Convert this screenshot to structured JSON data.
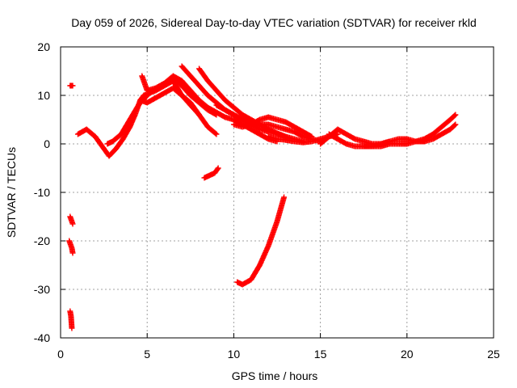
{
  "chart_data": {
    "type": "scatter",
    "title": "Day 059 of 2026, Sidereal Day-to-day VTEC variation (SDTVAR) for receiver rkld",
    "xlabel": "GPS time / hours",
    "ylabel": "SDTVAR / TECUs",
    "xlim": [
      0,
      25
    ],
    "ylim": [
      -40,
      20
    ],
    "xticks": [
      0,
      5,
      10,
      15,
      20,
      25
    ],
    "yticks": [
      -40,
      -30,
      -20,
      -10,
      0,
      10,
      20
    ],
    "grid": true,
    "marker": "+",
    "color": "#ff0000",
    "series": [
      {
        "name": "s1",
        "x": [
          1.0,
          1.5,
          2.0,
          2.5,
          2.8,
          3.2,
          3.6,
          4.0,
          4.3,
          4.6,
          4.8,
          5.5,
          6.0,
          6.5,
          7.0,
          7.5,
          8.0
        ],
        "y": [
          2,
          3,
          1.5,
          -1,
          -2.5,
          -1,
          1,
          3.5,
          6,
          9,
          10,
          11,
          12,
          13,
          10,
          8,
          6
        ]
      },
      {
        "name": "s2",
        "x": [
          2.7,
          3.0,
          3.5,
          4.0,
          4.5,
          5.0,
          5.5,
          6.0,
          6.5,
          7.0,
          7.5,
          8.0,
          8.5,
          9.0
        ],
        "y": [
          0,
          0.5,
          2,
          5,
          8,
          10,
          11.5,
          12.5,
          13.5,
          12,
          10,
          8.5,
          7,
          6
        ]
      },
      {
        "name": "s3",
        "x": [
          4.6,
          5.0,
          5.5,
          6.0,
          6.5,
          7.0,
          7.5,
          8.0,
          8.5,
          9.0
        ],
        "y": [
          9,
          8.5,
          9.5,
          10.5,
          11.5,
          10,
          8.5,
          6,
          3.5,
          2
        ]
      },
      {
        "name": "s4",
        "x": [
          4.7,
          5.0,
          5.5,
          6.0,
          6.5,
          7.0,
          7.5,
          8.0,
          8.5,
          9.0,
          9.5,
          10.0,
          10.5,
          11.0,
          11.5,
          12.0,
          12.5
        ],
        "y": [
          14,
          11,
          11.5,
          12.5,
          14,
          13,
          11,
          9,
          7.5,
          6.5,
          5.5,
          5,
          4,
          3,
          2,
          1,
          0.5
        ]
      },
      {
        "name": "s5",
        "x": [
          7.0,
          7.5,
          8.0,
          8.5,
          9.0,
          9.5,
          10.0,
          10.5,
          11.0,
          11.5,
          12.0,
          12.5,
          13.0,
          13.5,
          14.0
        ],
        "y": [
          16,
          14,
          12,
          10,
          8.5,
          7,
          6,
          5,
          4,
          3,
          2.5,
          2,
          1.5,
          1,
          0.5
        ]
      },
      {
        "name": "s6",
        "x": [
          8.0,
          8.5,
          9.0,
          9.5,
          10.0,
          10.5,
          11.0,
          11.5,
          12.0,
          12.5,
          13.0
        ],
        "y": [
          15.5,
          13,
          11,
          9,
          7.5,
          6,
          5,
          4,
          3,
          2.2,
          1.5
        ]
      },
      {
        "name": "s7",
        "x": [
          9.0,
          9.5,
          10.0,
          10.5,
          11.0,
          11.5,
          12.0,
          12.5,
          13.0,
          13.5,
          14.0,
          14.5,
          15.0
        ],
        "y": [
          8,
          7,
          6,
          5,
          4.5,
          4,
          4,
          3.5,
          3,
          2.5,
          1.5,
          1,
          0.5
        ]
      },
      {
        "name": "s8",
        "x": [
          10.0,
          10.5,
          11.0,
          11.5,
          12.0,
          12.5,
          13.0,
          13.5,
          14.0,
          14.5
        ],
        "y": [
          4,
          3.5,
          4,
          5,
          5.5,
          5,
          4.5,
          3.5,
          2.5,
          1.5
        ]
      },
      {
        "name": "s9",
        "x": [
          12.0,
          12.5,
          13.0,
          13.5,
          14.0,
          14.5,
          15.0,
          15.5,
          16.0
        ],
        "y": [
          1.5,
          1,
          0.8,
          0.5,
          0.3,
          0.5,
          1,
          1.5,
          2
        ]
      },
      {
        "name": "s10",
        "x": [
          15.0,
          15.5,
          16.0,
          16.5,
          17.0,
          17.5,
          18.0,
          18.5,
          19.0,
          19.5,
          20.0,
          20.5,
          21.0
        ],
        "y": [
          0,
          1.5,
          3,
          2,
          1,
          0.5,
          0,
          0,
          0.5,
          1,
          1,
          0.5,
          0.5
        ]
      },
      {
        "name": "s11",
        "x": [
          15.5,
          16.0,
          16.5,
          17.0,
          17.5,
          18.0,
          18.5,
          19.0
        ],
        "y": [
          2,
          1,
          0,
          -0.5,
          -0.5,
          -0.5,
          0,
          0.5
        ]
      },
      {
        "name": "s12",
        "x": [
          17.5,
          18.0,
          18.5,
          19.0,
          19.5,
          20.0,
          20.5,
          21.0,
          21.5,
          22.0,
          22.5,
          22.8
        ],
        "y": [
          -0.5,
          -0.5,
          -0.5,
          0,
          0,
          0,
          0.5,
          0.5,
          1,
          2,
          3,
          4
        ]
      },
      {
        "name": "s13",
        "x": [
          20.5,
          21.0,
          21.5,
          22.0,
          22.5,
          22.8
        ],
        "y": [
          0.5,
          1,
          2,
          3.5,
          5,
          6
        ]
      },
      {
        "name": "s14",
        "x": [
          10.2,
          10.5,
          11.0,
          11.5,
          12.0,
          12.5,
          12.9
        ],
        "y": [
          -28.5,
          -29,
          -28,
          -25,
          -21,
          -16,
          -11
        ]
      },
      {
        "name": "s15",
        "x": [
          8.3,
          8.6,
          8.9,
          9.1
        ],
        "y": [
          -7,
          -6.5,
          -6,
          -5
        ]
      },
      {
        "name": "s16",
        "x": [
          0.55,
          0.6,
          0.65,
          0.7
        ],
        "y": [
          12,
          12,
          12,
          12
        ]
      },
      {
        "name": "s17",
        "x": [
          0.55,
          0.6,
          0.65,
          0.7
        ],
        "y": [
          -15,
          -15.5,
          -16,
          -16.5
        ]
      },
      {
        "name": "s18",
        "x": [
          0.5,
          0.55,
          0.6,
          0.65,
          0.7
        ],
        "y": [
          -20,
          -20.5,
          -21,
          -21.5,
          -22.5
        ]
      },
      {
        "name": "s19",
        "x": [
          0.55,
          0.6,
          0.62,
          0.65
        ],
        "y": [
          -34.5,
          -35.5,
          -36.5,
          -38
        ]
      }
    ]
  }
}
